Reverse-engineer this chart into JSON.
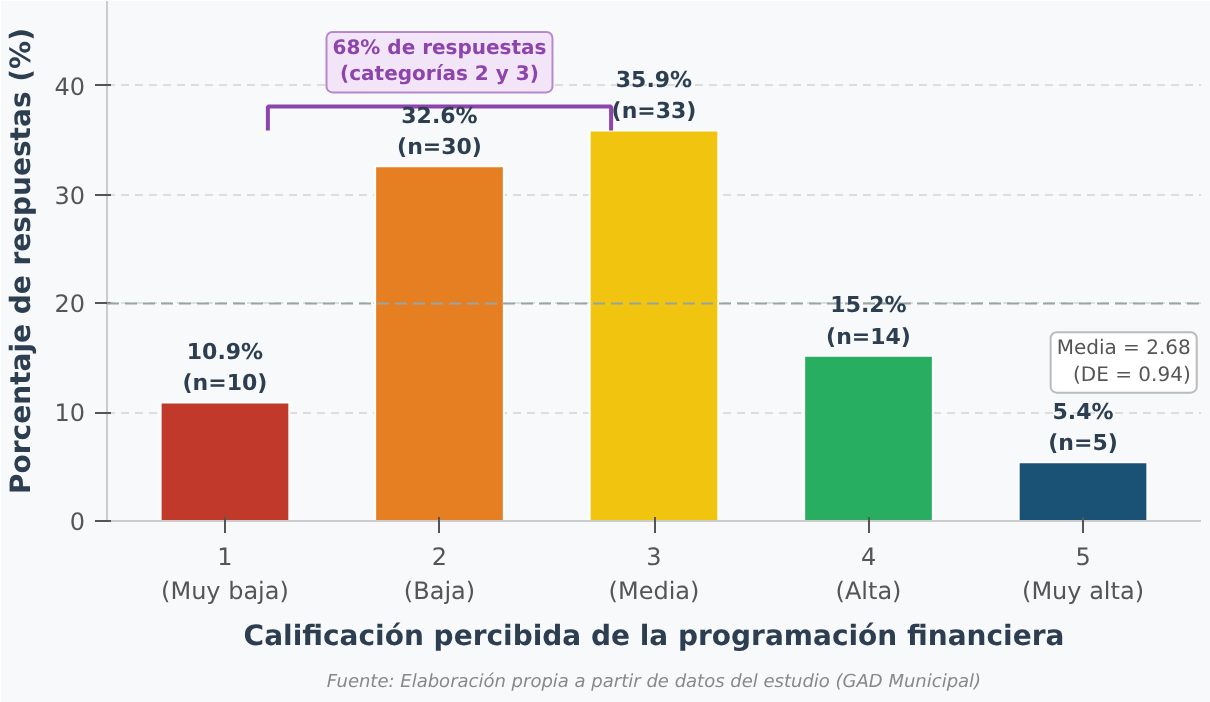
{
  "chart_data": {
    "type": "bar",
    "categories": [
      "1\n(Muy baja)",
      "2\n(Baja)",
      "3\n(Media)",
      "4\n(Alta)",
      "5\n(Muy alta)"
    ],
    "values": [
      10.9,
      32.6,
      35.9,
      15.2,
      5.4
    ],
    "colors": [
      "#c0392b",
      "#e67e22",
      "#f1c40f",
      "#27ae60",
      "#1a5276"
    ],
    "value_labels": [
      "10.9%\n(n=10)",
      "32.6%\n(n=30)",
      "35.9%\n(n=33)",
      "15.2%\n(n=14)",
      "5.4%\n(n=5)"
    ],
    "xlabel": "Calificación percibida de la programación financiera",
    "ylabel": "Porcentaje de respuestas (%)",
    "ylim": [
      0,
      47.8
    ],
    "yticks": [
      0,
      10,
      20,
      30,
      40
    ],
    "grid": "y",
    "ref_lines": [
      {
        "axis": "y",
        "value": 20,
        "color": "#95a5a6",
        "line_style": "dashed"
      }
    ],
    "annotations": [
      "68% de respuestas\n(categorías 2 y 3)",
      "Media = 2.68\n(DE = 0.94)",
      "Fuente: Elaboración propia a partir de datos del estudio (GAD Municipal)"
    ]
  }
}
